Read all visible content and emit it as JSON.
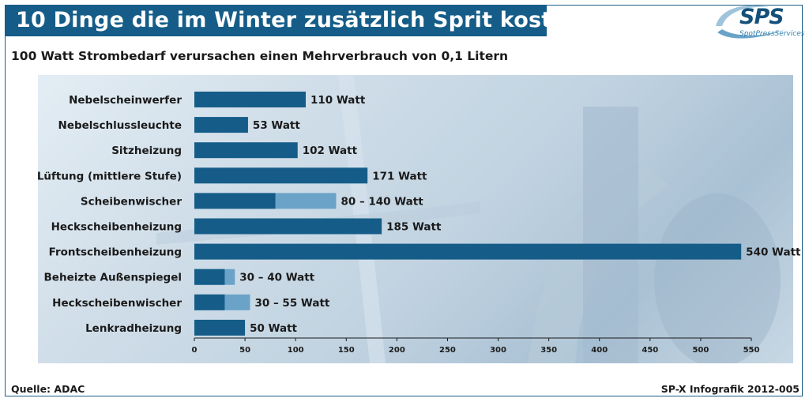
{
  "header": {
    "title": "10 Dinge die im Winter zusätzlich Sprit kosten",
    "subtitle": "100 Watt Strombedarf verursachen einen Mehrverbrauch von 0,1 Litern"
  },
  "logo": {
    "text": "SPS",
    "tagline": "SpotPressServices"
  },
  "footer": {
    "source": "Quelle: ADAC",
    "credit": "SP-X Infografik 2012-005"
  },
  "colors": {
    "bar_dark": "#155d88",
    "bar_light": "#6aa3c7",
    "title_bg": "#155d88"
  },
  "chart_data": {
    "type": "bar",
    "orientation": "horizontal",
    "categories": [
      "Nebelscheinwerfer",
      "Nebelschlussleuchte",
      "Sitzheizung",
      "Lüftung (mittlere Stufe)",
      "Scheibenwischer",
      "Heckscheibenheizung",
      "Frontscheibenheizung",
      "Beheizte Außenspiegel",
      "Heckscheibenwischer",
      "Lenkradheizung"
    ],
    "series": [
      {
        "values": [
          110,
          53,
          102,
          171,
          80,
          185,
          540,
          30,
          30,
          50
        ]
      },
      {
        "values": [
          110,
          53,
          102,
          171,
          140,
          185,
          540,
          40,
          55,
          50
        ]
      }
    ],
    "data_labels": [
      "110 Watt",
      "53 Watt",
      "102 Watt",
      "171 Watt",
      "80 – 140 Watt",
      "185 Watt",
      "540 Watt",
      "30 – 40 Watt",
      "30 – 55 Watt",
      "50 Watt"
    ],
    "xlim": [
      0,
      550
    ],
    "xticks": [
      0,
      50,
      100,
      150,
      200,
      250,
      300,
      350,
      400,
      450,
      500,
      550
    ],
    "grid": false
  }
}
